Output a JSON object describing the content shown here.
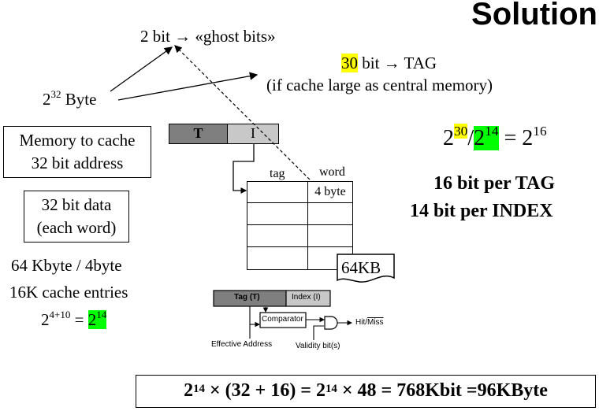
{
  "title": "Solution",
  "ghost": {
    "prefix": "2 bit ",
    "arrow": "→",
    "label": " «ghost bits»"
  },
  "tag_line": {
    "value": "30",
    "text": " bit ",
    "arrow": "→",
    "label": " TAG"
  },
  "tag_note": "(if cache large as central memory)",
  "byte_line": {
    "base": "2",
    "exp": "32",
    "label": " Byte"
  },
  "memory_box": {
    "line1": "Memory to cache",
    "line2": "32 bit address"
  },
  "data_box": {
    "line1": "32 bit data",
    "line2": "(each word)"
  },
  "size_lines": {
    "line1": "64 Kbyte / 4byte",
    "line2": "16K cache entries"
  },
  "entries_eq": {
    "base": "2",
    "exp": "4+10",
    "eq": " = ",
    "base2": "2",
    "exp2": "14"
  },
  "ratio_eq": {
    "base1": "2",
    "exp1": "30",
    "slash": "/",
    "base2": "2",
    "exp2": "14",
    "eq": " = ",
    "base3": "2",
    "exp3": "16"
  },
  "per_tag": "16 bit per TAG",
  "per_index": "14 bit per INDEX",
  "address_fields": {
    "t": "T",
    "i": "I"
  },
  "cache_headers": {
    "tag": "tag",
    "word": "word"
  },
  "word_size": "4 byte",
  "cache_size": "64KB",
  "lower_fields": {
    "tag": "Tag (T)",
    "index": "Index (I)"
  },
  "comparator": "Comparator",
  "hit_miss": {
    "hit": "Hit/",
    "miss": "Miss"
  },
  "effective_address": "Effective Address",
  "validity": "Validity bit(s)",
  "formula": {
    "b1": "2",
    "e1": "14",
    "mid1": " × (32 + 16) = ",
    "b2": "2",
    "e2": "14",
    "mid2": " × 48 = 768Kbit =96KByte"
  },
  "colors": {
    "highlight_yellow": "#ffff00",
    "highlight_green": "#00ff00",
    "field_gray": "#7f7f7f",
    "field_light": "#c8c8c8"
  }
}
